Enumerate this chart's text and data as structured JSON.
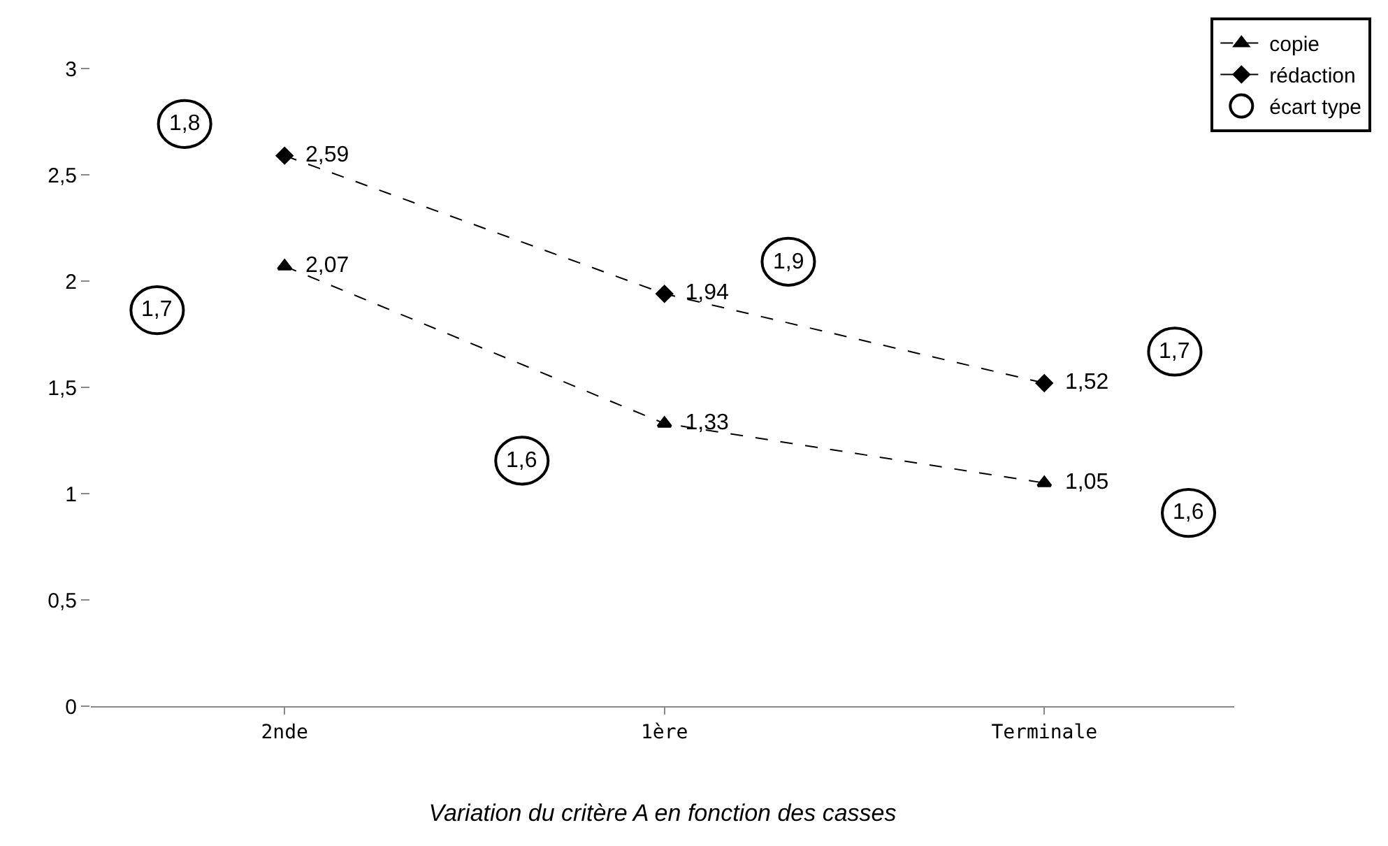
{
  "chart_data": {
    "type": "line",
    "title": "Variation du critère A en fonction des casses",
    "categories": [
      "2nde",
      "1ère",
      "Terminale"
    ],
    "series": [
      {
        "name": "copie",
        "color": "#000000",
        "marker": "triangle",
        "values": [
          2.07,
          1.33,
          1.05
        ],
        "value_labels": [
          "2,07",
          "1,33",
          "1,05"
        ]
      },
      {
        "name": "rédaction",
        "color": "#000000",
        "marker": "diamond",
        "values": [
          2.59,
          1.94,
          1.52
        ],
        "value_labels": [
          "2,59",
          "1,94",
          "1,52"
        ]
      },
      {
        "name": "écart type",
        "type": "scatter",
        "color": "#000000",
        "marker": "circle",
        "values": [
          null,
          null,
          null
        ]
      }
    ],
    "annotations": [
      "1,7",
      "1,8",
      "1,6",
      "1,9",
      "1,7",
      "1,6"
    ],
    "ylim": [
      0,
      3
    ],
    "yticks": [
      0,
      {
        "value": 0.5,
        "label": "0,5"
      },
      1,
      {
        "value": 1.5,
        "label": "1,5"
      },
      2,
      {
        "value": 2.5,
        "label": "2,5"
      },
      3
    ],
    "line_style": "dashed",
    "legend": "top right"
  }
}
